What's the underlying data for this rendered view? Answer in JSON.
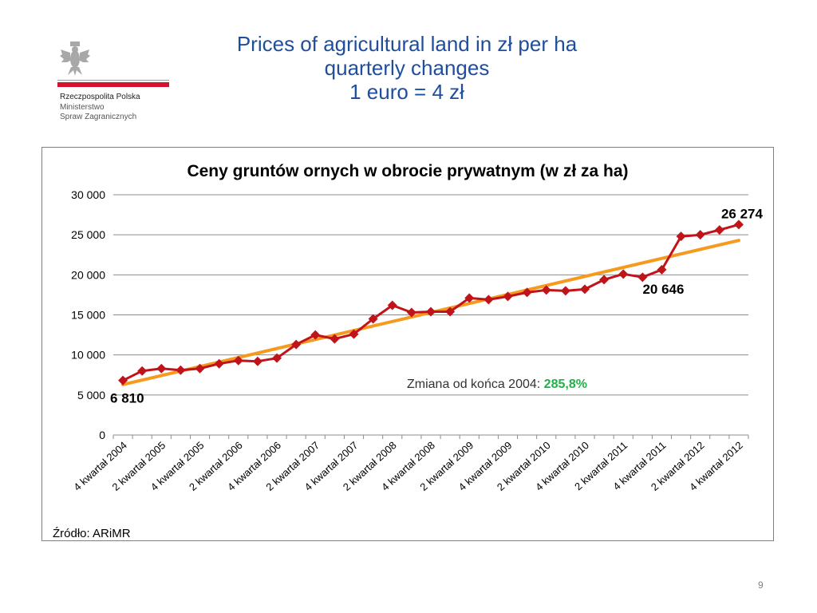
{
  "slide": {
    "title_lines": [
      "Prices of agricultural land in zł per ha",
      "quarterly changes",
      "1 euro = 4 zł"
    ],
    "page_number": "9"
  },
  "logo": {
    "line1": "Rzeczpospolita Polska",
    "line2": "Ministerstwo",
    "line3": "Spraw Zagranicznych",
    "icon": "eagle-emblem-icon",
    "accent_color": "#d4122e"
  },
  "chart_data": {
    "type": "line",
    "title": "Ceny gruntów ornych w obrocie prywatnym (w zł za ha)",
    "categories": [
      "4 kwartał 2004",
      "",
      "2 kwartał 2005",
      "",
      "4 kwartał 2005",
      "",
      "2 kwartał 2006",
      "",
      "4 kwartał 2006",
      "",
      "2 kwartał 2007",
      "",
      "4 kwartał 2007",
      "",
      "2 kwartał 2008",
      "",
      "4 kwartał 2008",
      "",
      "2 kwartał 2009",
      "",
      "4 kwartał 2009",
      "",
      "2 kwartał 2010",
      "",
      "4 kwartał 2010",
      "",
      "2 kwartał 2011",
      "",
      "4 kwartał 2011",
      "",
      "2 kwartał 2012",
      "",
      "4 kwartał 2012"
    ],
    "series": [
      {
        "values": [
          6810,
          8000,
          8300,
          8100,
          8300,
          8900,
          9300,
          9200,
          9600,
          11300,
          12500,
          12000,
          12600,
          14500,
          16200,
          15300,
          15400,
          15400,
          17100,
          16900,
          17300,
          17800,
          18100,
          18000,
          18200,
          19400,
          20100,
          19700,
          20646,
          24800,
          25000,
          25600,
          26274
        ],
        "color": "#c0141a",
        "marker": "diamond"
      }
    ],
    "trendline": {
      "start": 6300,
      "end": 24300,
      "color": "#f59a1f"
    },
    "ylim": [
      0,
      30000
    ],
    "yticks": [
      0,
      5000,
      10000,
      15000,
      20000,
      25000,
      30000
    ],
    "ytick_labels": [
      "0",
      "5 000",
      "10 000",
      "15 000",
      "20 000",
      "25 000",
      "30 000"
    ],
    "grid": true,
    "point_labels": [
      {
        "index": 0,
        "text": "6 810"
      },
      {
        "index": 28,
        "text": "20 646"
      },
      {
        "index": 32,
        "text": "26 274"
      }
    ],
    "annotation": {
      "prefix": "Zmiana od końca 2004: ",
      "value": "285,8%",
      "value_color": "#22b04a"
    },
    "source": "Źródło: ARiMR"
  }
}
